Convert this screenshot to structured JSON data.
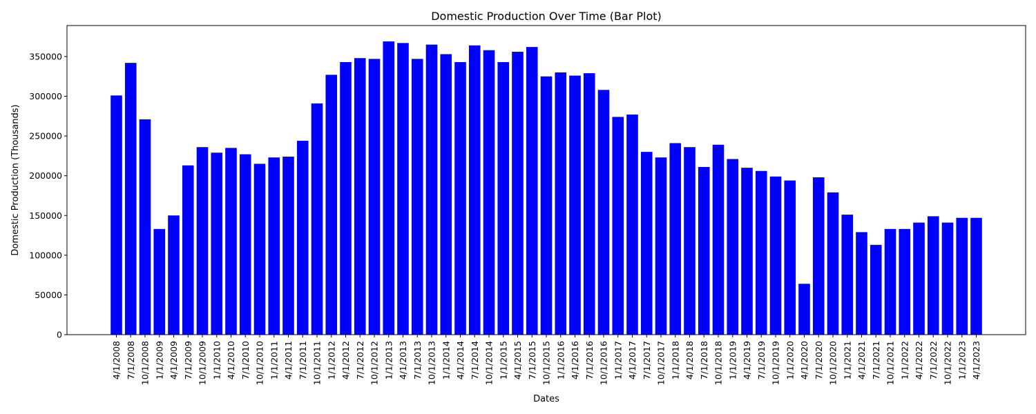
{
  "chart_data": {
    "type": "bar",
    "title": "Domestic Production Over Time (Bar Plot)",
    "xlabel": "Dates",
    "ylabel": "Domestic Production (Thousands)",
    "ylim": [
      0,
      389000
    ],
    "yticks": [
      0,
      50000,
      100000,
      150000,
      200000,
      250000,
      300000,
      350000
    ],
    "grid": false,
    "legend": "none",
    "bar_color": "#0000ff",
    "categories": [
      "4/1/2008",
      "7/1/2008",
      "10/1/2008",
      "1/1/2009",
      "4/1/2009",
      "7/1/2009",
      "10/1/2009",
      "1/1/2010",
      "4/1/2010",
      "7/1/2010",
      "10/1/2010",
      "1/1/2011",
      "4/1/2011",
      "7/1/2011",
      "10/1/2011",
      "1/1/2012",
      "4/1/2012",
      "7/1/2012",
      "10/1/2012",
      "1/1/2013",
      "4/1/2013",
      "7/1/2013",
      "10/1/2013",
      "1/1/2014",
      "4/1/2014",
      "7/1/2014",
      "10/1/2014",
      "1/1/2015",
      "4/1/2015",
      "7/1/2015",
      "10/1/2015",
      "1/1/2016",
      "4/1/2016",
      "7/1/2016",
      "10/1/2016",
      "1/1/2017",
      "4/1/2017",
      "7/1/2017",
      "10/1/2017",
      "1/1/2018",
      "4/1/2018",
      "7/1/2018",
      "10/1/2018",
      "1/1/2019",
      "4/1/2019",
      "7/1/2019",
      "10/1/2019",
      "1/1/2020",
      "4/1/2020",
      "7/1/2020",
      "10/1/2020",
      "1/1/2021",
      "4/1/2021",
      "7/1/2021",
      "10/1/2021",
      "1/1/2022",
      "4/1/2022",
      "7/1/2022",
      "10/1/2022",
      "1/1/2023",
      "4/1/2023"
    ],
    "values": [
      301000,
      342000,
      271000,
      133000,
      150000,
      213000,
      236000,
      229000,
      235000,
      227000,
      215000,
      223000,
      224000,
      244000,
      291000,
      327000,
      343000,
      348000,
      347000,
      369000,
      367000,
      347000,
      365000,
      353000,
      343000,
      364000,
      358000,
      343000,
      356000,
      362000,
      325000,
      330000,
      326000,
      329000,
      308000,
      274000,
      277000,
      230000,
      223000,
      241000,
      236000,
      211000,
      239000,
      221000,
      210000,
      206000,
      199000,
      194000,
      64000,
      198000,
      179000,
      151000,
      129000,
      113000,
      133000,
      133000,
      141000,
      149000,
      141000,
      147000,
      147000
    ]
  }
}
